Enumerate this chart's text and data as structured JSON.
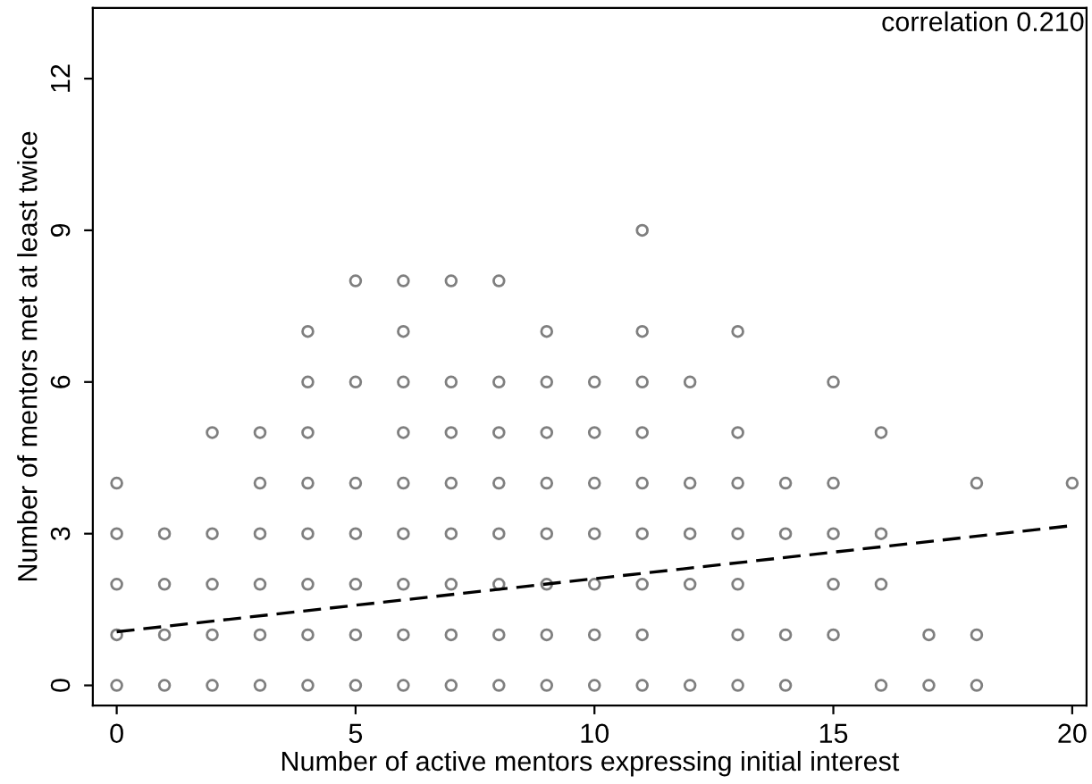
{
  "chart_data": {
    "type": "scatter",
    "xlabel": "Number of active mentors expressing initial interest",
    "ylabel": "Number of mentors met at least twice",
    "annotations": [
      "correlation 0.210"
    ],
    "xlim": [
      -0.5,
      20.3
    ],
    "ylim": [
      -0.4,
      13.4
    ],
    "xticks": [
      0,
      5,
      10,
      15,
      20
    ],
    "yticks": [
      0,
      3,
      6,
      9,
      12
    ],
    "grid": false,
    "legend": false,
    "marker": "circle",
    "series": [
      {
        "color": "#7f7f7f",
        "x": [
          5,
          6,
          7,
          8,
          4,
          6,
          9,
          4,
          5,
          6,
          7,
          8,
          9,
          10,
          2,
          3,
          4,
          6,
          7,
          8,
          9,
          10,
          0,
          3,
          4,
          5,
          6,
          7,
          8,
          9,
          10,
          0,
          1,
          2,
          3,
          4,
          5,
          6,
          7,
          8,
          9,
          10,
          0,
          1,
          2,
          3,
          4,
          5,
          6,
          7,
          8,
          9,
          10,
          0,
          1,
          2,
          3,
          4,
          5,
          6,
          7,
          8,
          9,
          10,
          0,
          1,
          2,
          3,
          4,
          5,
          6,
          7,
          8,
          9,
          10,
          11,
          11,
          13,
          11,
          12,
          15,
          11,
          13,
          16,
          11,
          12,
          13,
          14,
          15,
          18,
          20,
          11,
          12,
          13,
          14,
          15,
          16,
          11,
          12,
          13,
          15,
          16,
          11,
          13,
          14,
          15,
          17,
          18,
          11,
          12,
          13,
          14,
          16,
          17,
          18
        ],
        "values": [
          8,
          8,
          8,
          8,
          7,
          7,
          7,
          6,
          6,
          6,
          6,
          6,
          6,
          6,
          5,
          5,
          5,
          5,
          5,
          5,
          5,
          5,
          4,
          4,
          4,
          4,
          4,
          4,
          4,
          4,
          4,
          3,
          3,
          3,
          3,
          3,
          3,
          3,
          3,
          3,
          3,
          3,
          2,
          2,
          2,
          2,
          2,
          2,
          2,
          2,
          2,
          2,
          2,
          1,
          1,
          1,
          1,
          1,
          1,
          1,
          1,
          1,
          1,
          1,
          0,
          0,
          0,
          0,
          0,
          0,
          0,
          0,
          0,
          0,
          0,
          9,
          7,
          7,
          6,
          6,
          6,
          5,
          5,
          5,
          4,
          4,
          4,
          4,
          4,
          4,
          4,
          3,
          3,
          3,
          3,
          3,
          3,
          2,
          2,
          2,
          2,
          2,
          1,
          1,
          1,
          1,
          1,
          1,
          0,
          0,
          0,
          0,
          0,
          0,
          0
        ]
      },
      {
        "type": "line",
        "color": "#000000",
        "line_style": "dashed",
        "marker": "none",
        "x": [
          0,
          20
        ],
        "values": [
          1.06,
          3.16
        ]
      }
    ]
  }
}
